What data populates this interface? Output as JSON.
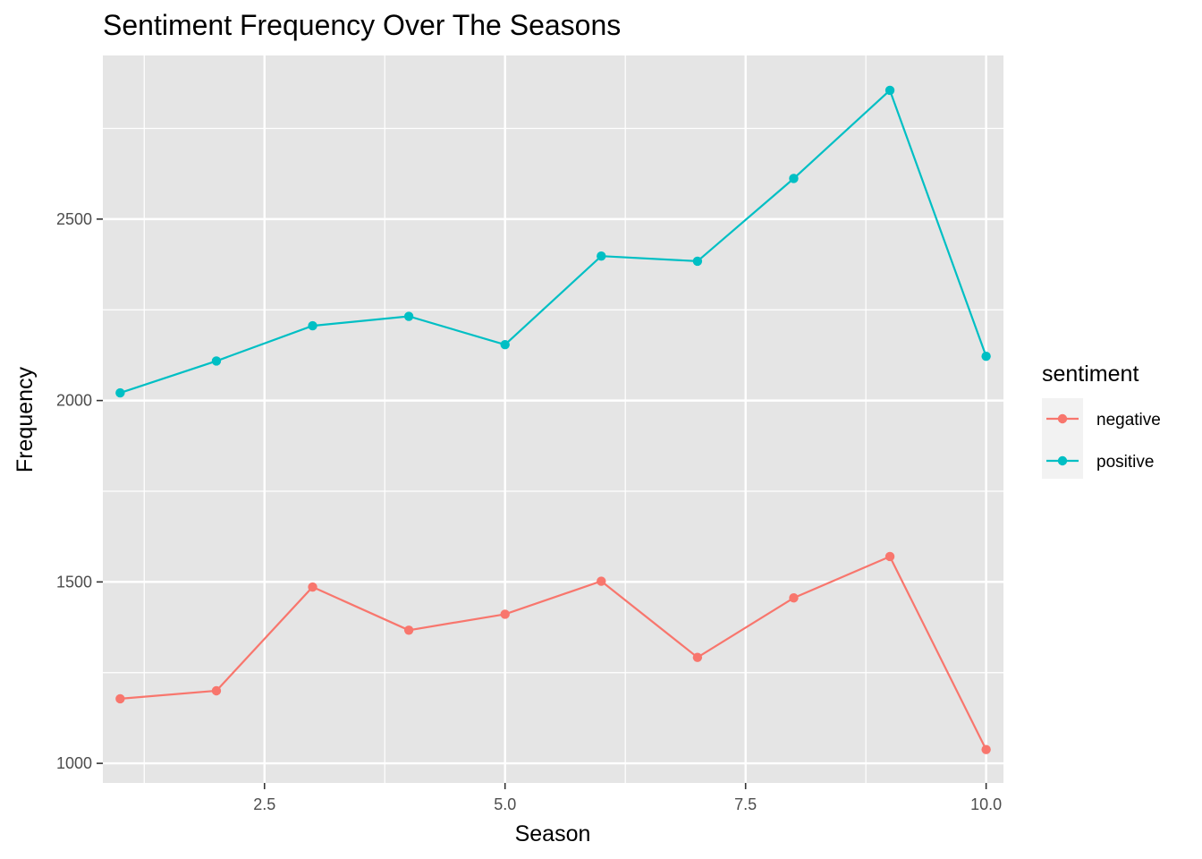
{
  "chart_data": {
    "type": "line",
    "title": "Sentiment Frequency Over The Seasons",
    "xlabel": "Season",
    "ylabel": "Frequency",
    "x": [
      1,
      2,
      3,
      4,
      5,
      6,
      7,
      8,
      9,
      10
    ],
    "series": [
      {
        "name": "negative",
        "color": "#F8766D",
        "values": [
          1178,
          1200,
          1486,
          1367,
          1411,
          1502,
          1292,
          1456,
          1570,
          1038
        ]
      },
      {
        "name": "positive",
        "color": "#00BFC4",
        "values": [
          2021,
          2109,
          2206,
          2232,
          2154,
          2398,
          2384,
          2612,
          2855,
          2122
        ]
      }
    ],
    "xlim": [
      0.82,
      10.18
    ],
    "ylim": [
      946,
      2951
    ],
    "xticks": [
      2.5,
      5.0,
      7.5,
      10.0
    ],
    "xtick_labels": [
      "2.5",
      "5.0",
      "7.5",
      "10.0"
    ],
    "yticks": [
      1000,
      1500,
      2000,
      2500
    ],
    "ytick_labels": [
      "1000",
      "1500",
      "2000",
      "2500"
    ],
    "x_minor": [
      1.25,
      3.75,
      6.25,
      8.75
    ],
    "y_minor": [
      1250,
      1750,
      2250,
      2750
    ],
    "grid": true,
    "legend": {
      "title": "sentiment",
      "position": "right"
    },
    "panel_color": "#E5E5E5",
    "grid_color": "#FFFFFF"
  }
}
